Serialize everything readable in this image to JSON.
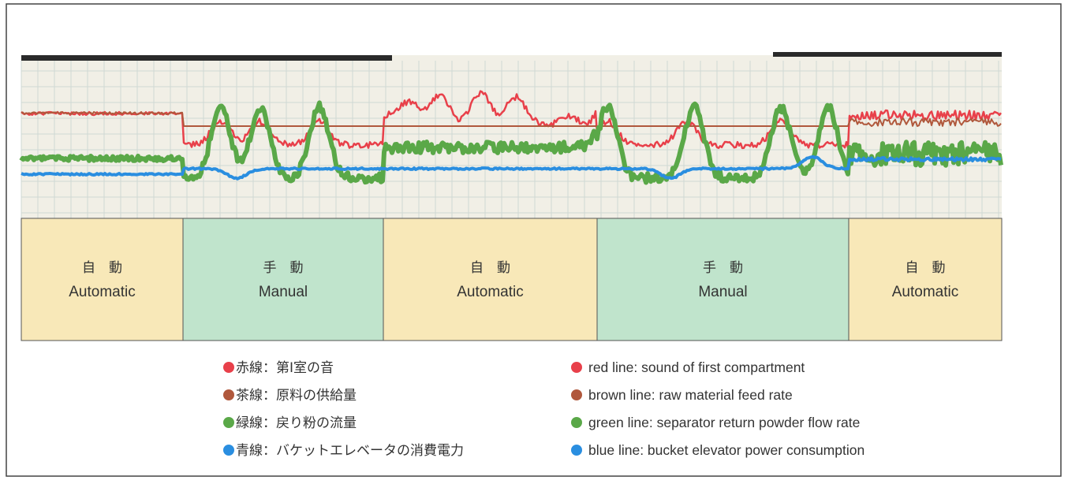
{
  "segments": [
    {
      "jp": "自　動",
      "en": "Automatic",
      "color": "#f8e8b8"
    },
    {
      "jp": "手　動",
      "en": "Manual",
      "color": "#c0e4cc"
    },
    {
      "jp": "自　動",
      "en": "Automatic",
      "color": "#f8e8b8"
    },
    {
      "jp": "手　動",
      "en": "Manual",
      "color": "#c0e4cc"
    },
    {
      "jp": "自　動",
      "en": "Automatic",
      "color": "#f8e8b8"
    }
  ],
  "legend": [
    {
      "jp": "赤線：第Ⅰ室の音",
      "en": "red line:  sound of first compartment",
      "color": "#e8404a"
    },
    {
      "jp": "茶線：原料の供給量",
      "en": "brown line:  raw material feed rate",
      "color": "#b0583c"
    },
    {
      "jp": "緑線：戻り粉の流量",
      "en": "green line:  separator return powder flow rate",
      "color": "#5aa848"
    },
    {
      "jp": "青線：バケットエレベータの消費電力",
      "en": "blue line:  bucket elevator power consumption",
      "color": "#2a8ee0"
    }
  ]
}
